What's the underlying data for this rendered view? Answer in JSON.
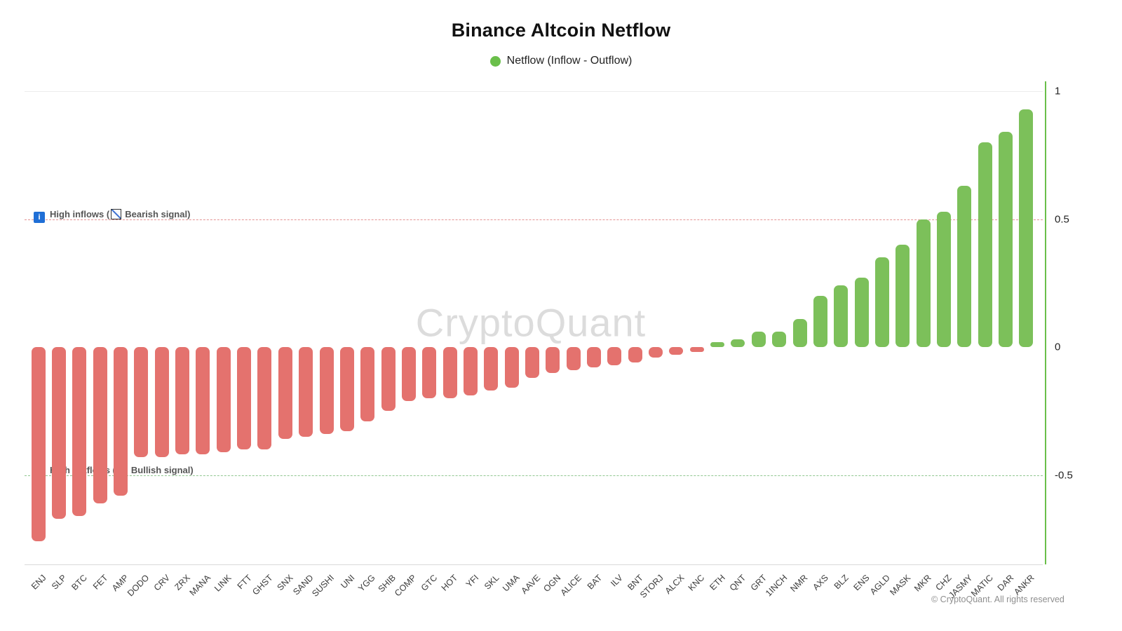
{
  "title": "Binance Altcoin Netflow",
  "legend": {
    "label": "Netflow (Inflow - Outflow)",
    "color": "#6abf4a"
  },
  "watermark": "CryptoQuant",
  "copyright": "© CryptoQuant. All rights reserved",
  "annotations": {
    "high_inflows": {
      "prefix": "High inflows (",
      "signal": "Bearish signal",
      "suffix": ")",
      "value": 0.5,
      "line_color": "#e49393"
    },
    "high_outflows": {
      "prefix": "High outflows (",
      "signal": "Bullish signal",
      "suffix": ")",
      "value": -0.5,
      "line_color": "#90c790"
    }
  },
  "y_axis": {
    "ticks": [
      1,
      0.5,
      0,
      -0.5
    ],
    "labels": [
      "1",
      "0.5",
      "0",
      "-0.5"
    ]
  },
  "chart_data": {
    "type": "bar",
    "title": "Binance Altcoin Netflow",
    "xlabel": "",
    "ylabel": "Netflow (Inflow - Outflow)",
    "ylim": [
      -0.85,
      1.05
    ],
    "grid": "minimal",
    "legend_position": "top-center",
    "positive_color": "#7cc05a",
    "negative_color": "#e4726e",
    "categories": [
      "ENJ",
      "SLP",
      "BTC",
      "FET",
      "AMP",
      "DODO",
      "CRV",
      "ZRX",
      "MANA",
      "LINK",
      "FTT",
      "GHST",
      "SNX",
      "SAND",
      "SUSHI",
      "UNI",
      "YGG",
      "SHIB",
      "COMP",
      "GTC",
      "HOT",
      "YFI",
      "SKL",
      "UMA",
      "AAVE",
      "OGN",
      "ALICE",
      "BAT",
      "ILV",
      "BNT",
      "STORJ",
      "ALCX",
      "KNC",
      "ETH",
      "QNT",
      "GRT",
      "1INCH",
      "NMR",
      "AXS",
      "BLZ",
      "ENS",
      "AGLD",
      "MASK",
      "MKR",
      "CHZ",
      "JASMY",
      "MATIC",
      "DAR",
      "ANKR"
    ],
    "values": [
      -0.76,
      -0.67,
      -0.66,
      -0.61,
      -0.58,
      -0.43,
      -0.43,
      -0.42,
      -0.42,
      -0.41,
      -0.4,
      -0.4,
      -0.36,
      -0.35,
      -0.34,
      -0.33,
      -0.29,
      -0.25,
      -0.21,
      -0.2,
      -0.2,
      -0.19,
      -0.17,
      -0.16,
      -0.12,
      -0.1,
      -0.09,
      -0.08,
      -0.07,
      -0.06,
      -0.04,
      -0.03,
      -0.02,
      0.02,
      0.03,
      0.06,
      0.06,
      0.11,
      0.2,
      0.24,
      0.27,
      0.35,
      0.4,
      0.5,
      0.53,
      0.63,
      0.8,
      0.84,
      0.93
    ]
  }
}
